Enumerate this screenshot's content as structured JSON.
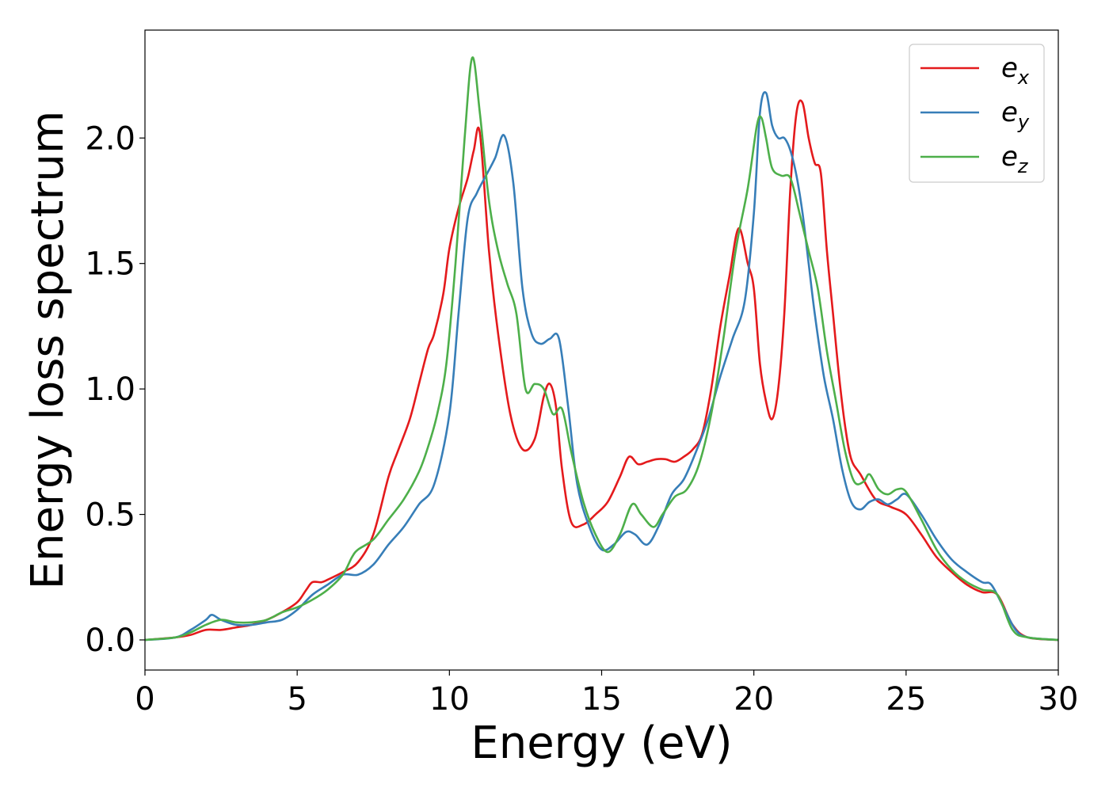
{
  "chart_data": {
    "type": "line",
    "title": "",
    "xlabel": "Energy (eV)",
    "ylabel": "Energy loss spectrum",
    "xlim": [
      0,
      30
    ],
    "ylim": [
      -0.12,
      2.43
    ],
    "xticks": [
      0,
      5,
      10,
      15,
      20,
      25,
      30
    ],
    "xtick_labels": [
      "0",
      "5",
      "10",
      "15",
      "20",
      "25",
      "30"
    ],
    "yticks": [
      0.0,
      0.5,
      1.0,
      1.5,
      2.0
    ],
    "ytick_labels": [
      "0.0",
      "0.5",
      "1.0",
      "1.5",
      "2.0"
    ],
    "grid": false,
    "legend_position": "top-right",
    "series": [
      {
        "name": "e_x",
        "label_base": "e",
        "label_sub": "x",
        "color": "#e41a1c",
        "x": [
          0,
          1,
          1.5,
          2,
          2.5,
          3,
          3.5,
          4,
          4.5,
          5,
          5.3,
          5.5,
          5.8,
          6,
          6.5,
          7,
          7.5,
          8,
          8.3,
          8.7,
          9,
          9.3,
          9.5,
          9.8,
          10,
          10.3,
          10.6,
          10.8,
          11,
          11.3,
          11.6,
          12,
          12.4,
          12.8,
          13.1,
          13.3,
          13.5,
          13.7,
          14,
          14.4,
          14.8,
          15.2,
          15.6,
          15.9,
          16.2,
          16.5,
          16.8,
          17.1,
          17.4,
          17.7,
          18,
          18.3,
          18.6,
          18.9,
          19.2,
          19.5,
          19.8,
          20,
          20.2,
          20.4,
          20.6,
          20.8,
          21,
          21.2,
          21.4,
          21.6,
          21.8,
          22,
          22.2,
          22.4,
          22.6,
          22.8,
          23,
          23.2,
          23.5,
          24,
          24.5,
          25,
          25.5,
          26,
          26.5,
          27,
          27.5,
          28,
          28.5,
          29,
          30
        ],
        "y": [
          0.0,
          0.01,
          0.02,
          0.04,
          0.04,
          0.05,
          0.06,
          0.08,
          0.11,
          0.15,
          0.2,
          0.23,
          0.23,
          0.24,
          0.27,
          0.31,
          0.42,
          0.65,
          0.75,
          0.88,
          1.02,
          1.16,
          1.22,
          1.38,
          1.56,
          1.72,
          1.84,
          1.95,
          2.02,
          1.55,
          1.22,
          0.9,
          0.76,
          0.8,
          0.97,
          1.02,
          0.93,
          0.68,
          0.47,
          0.46,
          0.5,
          0.55,
          0.65,
          0.73,
          0.7,
          0.71,
          0.72,
          0.72,
          0.71,
          0.73,
          0.76,
          0.82,
          1.0,
          1.25,
          1.45,
          1.64,
          1.5,
          1.4,
          1.1,
          0.95,
          0.88,
          1.0,
          1.3,
          1.8,
          2.1,
          2.14,
          2.0,
          1.9,
          1.86,
          1.55,
          1.3,
          1.05,
          0.85,
          0.72,
          0.66,
          0.56,
          0.53,
          0.5,
          0.42,
          0.33,
          0.27,
          0.22,
          0.19,
          0.18,
          0.06,
          0.01,
          0.0
        ]
      },
      {
        "name": "e_y",
        "label_base": "e",
        "label_sub": "y",
        "color": "#377eb8",
        "x": [
          0,
          1,
          1.5,
          2,
          2.2,
          2.5,
          3,
          3.5,
          4,
          4.5,
          5,
          5.5,
          6,
          6.5,
          7,
          7.5,
          8,
          8.5,
          9,
          9.5,
          10,
          10.3,
          10.6,
          10.9,
          11.2,
          11.5,
          11.8,
          12.1,
          12.4,
          12.7,
          13,
          13.3,
          13.6,
          13.9,
          14.2,
          14.6,
          15,
          15.4,
          15.8,
          16.1,
          16.5,
          16.9,
          17.3,
          17.7,
          18.1,
          18.5,
          18.9,
          19.3,
          19.7,
          20,
          20.2,
          20.4,
          20.6,
          20.8,
          21,
          21.2,
          21.4,
          21.6,
          21.8,
          22,
          22.3,
          22.6,
          22.9,
          23.2,
          23.5,
          23.8,
          24.1,
          24.4,
          24.7,
          25,
          25.5,
          26,
          26.5,
          27,
          27.5,
          27.8,
          28.2,
          28.6,
          29,
          30
        ],
        "y": [
          0.0,
          0.01,
          0.04,
          0.08,
          0.1,
          0.08,
          0.06,
          0.06,
          0.07,
          0.08,
          0.12,
          0.18,
          0.22,
          0.26,
          0.26,
          0.3,
          0.38,
          0.45,
          0.54,
          0.62,
          0.9,
          1.3,
          1.68,
          1.78,
          1.85,
          1.92,
          2.01,
          1.82,
          1.4,
          1.22,
          1.18,
          1.2,
          1.2,
          0.93,
          0.62,
          0.45,
          0.36,
          0.38,
          0.43,
          0.42,
          0.38,
          0.46,
          0.58,
          0.64,
          0.75,
          0.88,
          1.05,
          1.2,
          1.35,
          1.7,
          2.1,
          2.18,
          2.05,
          2.0,
          2.0,
          1.95,
          1.85,
          1.7,
          1.5,
          1.3,
          1.05,
          0.88,
          0.68,
          0.55,
          0.52,
          0.55,
          0.56,
          0.54,
          0.56,
          0.58,
          0.5,
          0.4,
          0.32,
          0.27,
          0.23,
          0.22,
          0.13,
          0.04,
          0.01,
          0.0
        ]
      },
      {
        "name": "e_z",
        "label_base": "e",
        "label_sub": "z",
        "color": "#4daf4a",
        "x": [
          0,
          1,
          1.5,
          2,
          2.5,
          3,
          3.5,
          4,
          4.5,
          5,
          5.5,
          6,
          6.5,
          6.8,
          7,
          7.5,
          8,
          8.5,
          9,
          9.3,
          9.6,
          9.9,
          10.2,
          10.5,
          10.75,
          11,
          11.3,
          11.6,
          11.9,
          12.2,
          12.5,
          12.8,
          13.1,
          13.4,
          13.7,
          14,
          14.4,
          14.8,
          15.2,
          15.6,
          16,
          16.3,
          16.7,
          17,
          17.4,
          17.8,
          18.2,
          18.6,
          19,
          19.4,
          19.8,
          20.1,
          20.25,
          20.4,
          20.6,
          20.9,
          21.2,
          21.5,
          21.8,
          22.1,
          22.4,
          22.7,
          23,
          23.3,
          23.6,
          23.8,
          24.1,
          24.4,
          24.7,
          25,
          25.5,
          26,
          26.5,
          27,
          27.5,
          28,
          28.5,
          29,
          30
        ],
        "y": [
          0.0,
          0.01,
          0.03,
          0.06,
          0.08,
          0.07,
          0.07,
          0.08,
          0.11,
          0.13,
          0.16,
          0.2,
          0.26,
          0.33,
          0.36,
          0.4,
          0.48,
          0.56,
          0.67,
          0.77,
          0.9,
          1.1,
          1.5,
          2.0,
          2.32,
          2.1,
          1.75,
          1.55,
          1.42,
          1.3,
          1.0,
          1.02,
          1.0,
          0.9,
          0.92,
          0.75,
          0.55,
          0.42,
          0.35,
          0.42,
          0.54,
          0.5,
          0.45,
          0.5,
          0.57,
          0.6,
          0.7,
          0.9,
          1.2,
          1.55,
          1.8,
          2.05,
          2.08,
          2.0,
          1.88,
          1.85,
          1.84,
          1.7,
          1.55,
          1.4,
          1.15,
          0.95,
          0.75,
          0.63,
          0.63,
          0.66,
          0.6,
          0.58,
          0.6,
          0.59,
          0.48,
          0.36,
          0.28,
          0.23,
          0.2,
          0.18,
          0.04,
          0.01,
          0.0
        ]
      }
    ]
  }
}
